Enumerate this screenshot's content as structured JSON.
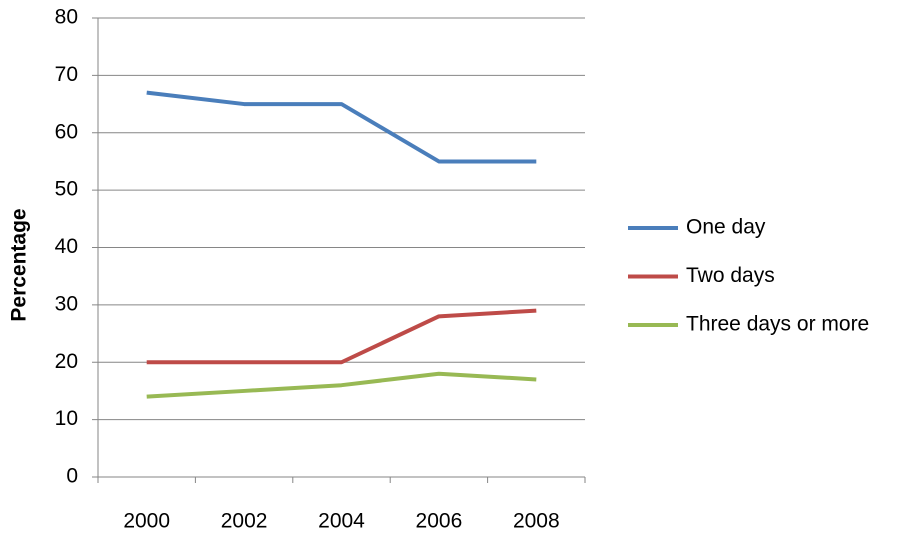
{
  "chart_data": {
    "type": "line",
    "y_label": "Percentage",
    "categories": [
      "2000",
      "2002",
      "2004",
      "2006",
      "2008"
    ],
    "series": [
      {
        "name": "One day",
        "color": "#4a7ebb",
        "values": [
          67,
          65,
          65,
          55,
          55
        ]
      },
      {
        "name": "Two days",
        "color": "#be4b48",
        "values": [
          20,
          20,
          20,
          28,
          29
        ]
      },
      {
        "name": "Three days or more",
        "color": "#98b954",
        "values": [
          14,
          15,
          16,
          18,
          17
        ]
      }
    ],
    "ylim": [
      0,
      80
    ],
    "yticks": [
      0,
      10,
      20,
      30,
      40,
      50,
      60,
      70,
      80
    ],
    "grid": true,
    "legend": "right"
  }
}
